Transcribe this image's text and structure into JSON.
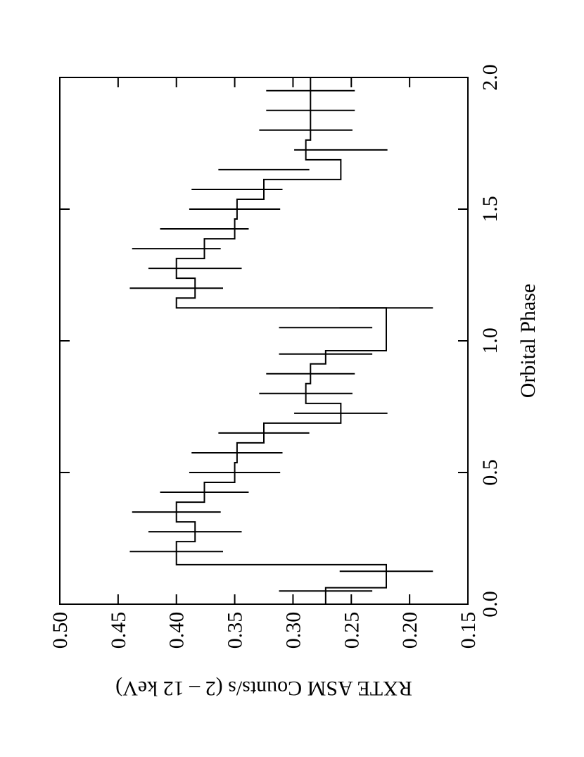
{
  "chart_data": {
    "type": "line",
    "step": true,
    "xlabel": "Orbital Phase",
    "ylabel": "RXTE ASM Counts/s (2 – 12 keV)",
    "xlim": [
      0.0,
      2.0
    ],
    "ylim": [
      0.15,
      0.5
    ],
    "xticks": [
      0.0,
      0.5,
      1.0,
      1.5,
      2.0
    ],
    "xtick_labels": [
      "0.0",
      "0.5",
      "1.0",
      "1.5",
      "2.0"
    ],
    "yticks": [
      0.15,
      0.2,
      0.25,
      0.3,
      0.35,
      0.4,
      0.45,
      0.5
    ],
    "ytick_labels": [
      "0.15",
      "0.20",
      "0.25",
      "0.30",
      "0.35",
      "0.40",
      "0.45",
      "0.50"
    ],
    "bin_edges": [
      0.0,
      0.0625,
      0.15,
      0.2375,
      0.3125,
      0.3875,
      0.4625,
      0.5375,
      0.6125,
      0.6875,
      0.7625,
      0.8375,
      0.9125,
      0.9625,
      1.0375,
      1.125,
      1.1625,
      1.2375,
      1.3125,
      1.3875,
      1.4625,
      1.5375,
      1.6125,
      1.6875,
      1.7625,
      1.8375,
      1.9125,
      1.9625,
      2.0
    ],
    "values": [
      0.272,
      0.22,
      0.4,
      0.384,
      0.4,
      0.376,
      0.35,
      0.348,
      0.325,
      0.259,
      0.289,
      0.285,
      0.272,
      0.22,
      0.22,
      0.4,
      0.384,
      0.4,
      0.376,
      0.35,
      0.348,
      0.325,
      0.259,
      0.289,
      0.285,
      0.285,
      0.285,
      0.285
    ],
    "errors": [
      {
        "x": 0.05,
        "y": 0.272,
        "err": 0.04
      },
      {
        "x": 0.125,
        "y": 0.22,
        "err": 0.04
      },
      {
        "x": 0.2,
        "y": 0.4,
        "err": 0.04
      },
      {
        "x": 0.275,
        "y": 0.384,
        "err": 0.04
      },
      {
        "x": 0.35,
        "y": 0.4,
        "err": 0.038
      },
      {
        "x": 0.425,
        "y": 0.376,
        "err": 0.038
      },
      {
        "x": 0.5,
        "y": 0.35,
        "err": 0.039
      },
      {
        "x": 0.575,
        "y": 0.348,
        "err": 0.039
      },
      {
        "x": 0.65,
        "y": 0.325,
        "err": 0.039
      },
      {
        "x": 0.725,
        "y": 0.259,
        "err": 0.04
      },
      {
        "x": 0.8,
        "y": 0.289,
        "err": 0.04
      },
      {
        "x": 0.875,
        "y": 0.285,
        "err": 0.038
      },
      {
        "x": 0.95,
        "y": 0.272,
        "err": 0.04
      },
      {
        "x": 1.05,
        "y": 0.272,
        "err": 0.04
      },
      {
        "x": 1.125,
        "y": 0.22,
        "err": 0.04
      },
      {
        "x": 1.2,
        "y": 0.4,
        "err": 0.04
      },
      {
        "x": 1.275,
        "y": 0.384,
        "err": 0.04
      },
      {
        "x": 1.35,
        "y": 0.4,
        "err": 0.038
      },
      {
        "x": 1.425,
        "y": 0.376,
        "err": 0.038
      },
      {
        "x": 1.5,
        "y": 0.35,
        "err": 0.039
      },
      {
        "x": 1.575,
        "y": 0.348,
        "err": 0.039
      },
      {
        "x": 1.65,
        "y": 0.325,
        "err": 0.039
      },
      {
        "x": 1.725,
        "y": 0.259,
        "err": 0.04
      },
      {
        "x": 1.8,
        "y": 0.289,
        "err": 0.04
      },
      {
        "x": 1.875,
        "y": 0.285,
        "err": 0.038
      },
      {
        "x": 1.95,
        "y": 0.285,
        "err": 0.038
      }
    ],
    "grid": false,
    "orientation": "rotated-90-ccw"
  }
}
